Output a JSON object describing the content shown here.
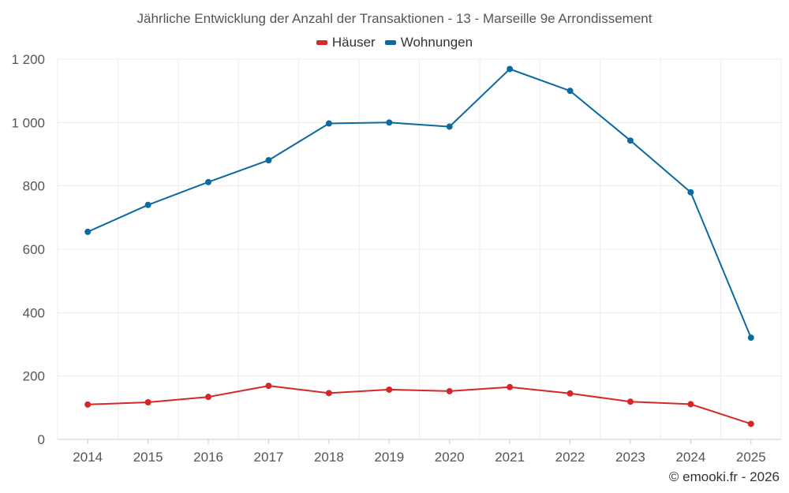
{
  "chart_data": {
    "type": "line",
    "title": "Jährliche Entwicklung der Anzahl der Transaktionen - 13 - Marseille 9e Arrondissement",
    "xlabel": "",
    "ylabel": "",
    "categories": [
      "2014",
      "2015",
      "2016",
      "2017",
      "2018",
      "2019",
      "2020",
      "2021",
      "2022",
      "2023",
      "2024",
      "2025"
    ],
    "ylim": [
      0,
      1200
    ],
    "yticks": [
      0,
      200,
      400,
      600,
      800,
      1000,
      1200
    ],
    "ytick_labels": [
      "0",
      "200",
      "400",
      "600",
      "800",
      "1 000",
      "1 200"
    ],
    "grid": true,
    "legend_position": "top-center",
    "series": [
      {
        "name": "Häuser",
        "color": "#d62728",
        "values": [
          110,
          117,
          134,
          169,
          146,
          157,
          152,
          165,
          145,
          119,
          111,
          49
        ]
      },
      {
        "name": "Wohnungen",
        "color": "#0a6aa1",
        "values": [
          655,
          740,
          812,
          881,
          997,
          1000,
          987,
          1169,
          1100,
          943,
          780,
          321
        ]
      }
    ]
  },
  "watermark": "© emooki.fr - 2026"
}
